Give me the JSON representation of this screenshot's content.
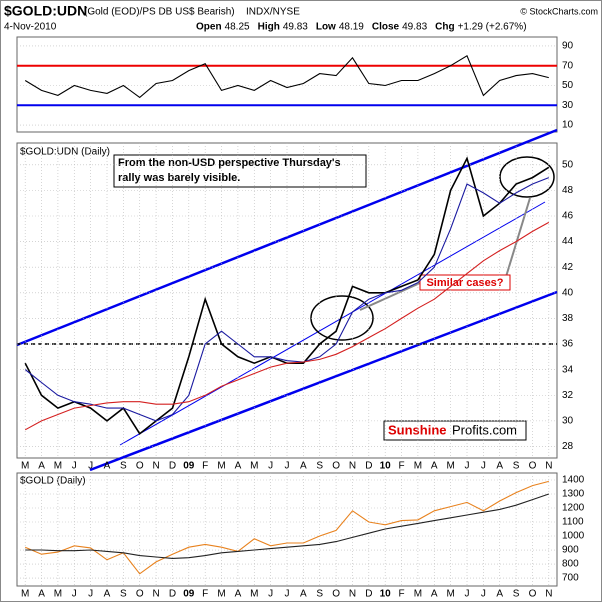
{
  "header": {
    "symbol": "$GOLD:UDN",
    "description": "(Gold (EOD)/PS DB US$ Bearish)",
    "exchange": "INDX/NYSE",
    "copyright": "© StockCharts.com",
    "date": "4-Nov-2010",
    "quote": [
      {
        "label": "Open",
        "value": "48.25"
      },
      {
        "label": "High",
        "value": "49.83"
      },
      {
        "label": "Low",
        "value": "48.19"
      },
      {
        "label": "Close",
        "value": "49.83"
      },
      {
        "label": "Chg",
        "value": "+1.29 (+2.67%)"
      }
    ]
  },
  "chart_data": [
    {
      "type": "line",
      "panel": "rsi",
      "categories": [
        "M",
        "A",
        "M",
        "J",
        "J",
        "A",
        "S",
        "O",
        "N",
        "D",
        "09",
        "F",
        "M",
        "A",
        "M",
        "J",
        "J",
        "A",
        "S",
        "O",
        "N",
        "D",
        "10",
        "F",
        "M",
        "A",
        "M",
        "J",
        "J",
        "A",
        "S",
        "O",
        "N"
      ],
      "ylim": [
        3,
        99
      ],
      "yticks": [
        10,
        30,
        50,
        70,
        90
      ],
      "upper": 70,
      "lower": 30,
      "series": [
        {
          "color": "#000000",
          "values": [
            55,
            45,
            40,
            50,
            45,
            42,
            50,
            38,
            52,
            55,
            65,
            72,
            45,
            50,
            45,
            55,
            48,
            52,
            62,
            60,
            78,
            52,
            50,
            55,
            55,
            62,
            70,
            80,
            40,
            55,
            60,
            62,
            58
          ]
        }
      ]
    },
    {
      "type": "line",
      "panel": "main",
      "label": "$GOLD:UDN (Daily)",
      "categories": [
        "M",
        "A",
        "M",
        "J",
        "J",
        "A",
        "S",
        "O",
        "N",
        "D",
        "09",
        "F",
        "M",
        "A",
        "M",
        "J",
        "J",
        "A",
        "S",
        "O",
        "N",
        "D",
        "10",
        "F",
        "M",
        "A",
        "M",
        "J",
        "J",
        "A",
        "S",
        "O",
        "N"
      ],
      "ylim": [
        27.1,
        51.7
      ],
      "yticks": [
        28,
        30,
        32,
        34,
        36,
        38,
        40,
        42,
        44,
        46,
        48,
        50
      ],
      "series": [
        {
          "color": "#000000",
          "values": [
            34.5,
            32,
            31,
            31.5,
            31,
            30,
            31,
            29,
            30,
            31,
            35,
            39.5,
            36,
            35,
            34.5,
            35,
            34.5,
            34.5,
            36,
            37,
            40.5,
            40,
            40,
            40.5,
            41,
            43,
            48,
            50.5,
            46,
            47,
            48.5,
            49,
            49.8
          ]
        },
        {
          "color": "#1a1aa0",
          "values": [
            34,
            33,
            32,
            31.5,
            31.3,
            31,
            31,
            30.5,
            30,
            30.5,
            32,
            36,
            37,
            36,
            35,
            35,
            34.7,
            34.6,
            35,
            36,
            38.5,
            39.5,
            40,
            40.2,
            40.8,
            42,
            45,
            48.5,
            47.8,
            47,
            47.8,
            48.5,
            49
          ]
        },
        {
          "color": "#d42020",
          "values": [
            29.3,
            30,
            30.5,
            31,
            31.2,
            31.4,
            31.5,
            31.5,
            31.3,
            31.3,
            31.5,
            32,
            32.7,
            33.2,
            33.7,
            34.2,
            34.5,
            34.6,
            34.8,
            35.2,
            35.8,
            36.5,
            37.2,
            38,
            38.8,
            39.5,
            40.5,
            41.5,
            42.5,
            43.3,
            44,
            44.8,
            45.5
          ]
        }
      ],
      "annotations": {
        "note": "From the non-USD perspective Thursday's rally was barely visible.",
        "question": "Similar cases?",
        "brand1": "Sunshine",
        "brand2": "Profits.com"
      }
    },
    {
      "type": "line",
      "panel": "gold",
      "label": "$GOLD (Daily)",
      "categories": [
        "M",
        "A",
        "M",
        "J",
        "J",
        "A",
        "S",
        "O",
        "N",
        "D",
        "09",
        "F",
        "M",
        "A",
        "M",
        "J",
        "J",
        "A",
        "S",
        "O",
        "N",
        "D",
        "10",
        "F",
        "M",
        "A",
        "M",
        "J",
        "J",
        "A",
        "S",
        "O",
        "N"
      ],
      "ylim": [
        643,
        1450
      ],
      "yticks": [
        700,
        800,
        900,
        1000,
        1100,
        1200,
        1300,
        1400
      ],
      "series": [
        {
          "color": "#e8821e",
          "values": [
            920,
            870,
            885,
            930,
            915,
            830,
            880,
            730,
            815,
            870,
            920,
            940,
            920,
            890,
            980,
            930,
            950,
            950,
            1000,
            1040,
            1180,
            1100,
            1080,
            1110,
            1115,
            1180,
            1210,
            1240,
            1180,
            1250,
            1310,
            1360,
            1390
          ]
        },
        {
          "color": "#222222",
          "values": [
            900,
            900,
            895,
            895,
            900,
            890,
            880,
            860,
            850,
            840,
            845,
            860,
            880,
            890,
            900,
            910,
            920,
            930,
            940,
            960,
            990,
            1020,
            1050,
            1070,
            1090,
            1110,
            1130,
            1150,
            1170,
            1190,
            1220,
            1260,
            1300
          ]
        }
      ]
    }
  ]
}
